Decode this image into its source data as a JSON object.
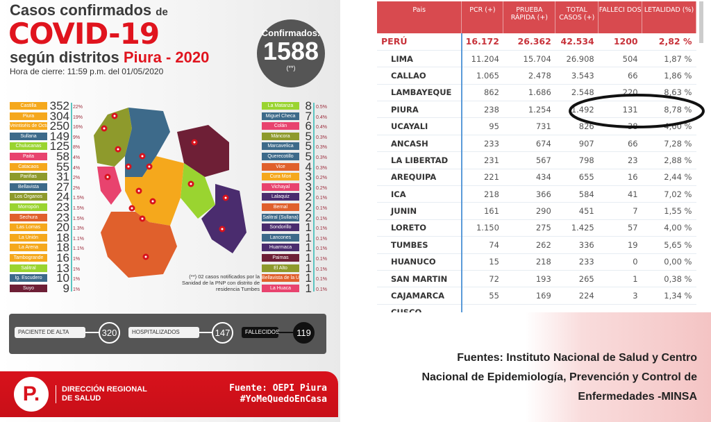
{
  "infographic": {
    "title_line1": "Casos confirmados",
    "title_de": "de",
    "title_main": "COVID-19",
    "title_line3a": "según distritos",
    "title_line3b": "Piura - 2020",
    "closing_time": "Hora de cierre: 11:59 p.m. del 01/05/2020",
    "confirmed_label": "Confirmados:",
    "confirmed_value": "1588",
    "confirmed_note": "(**)",
    "left_districts": [
      {
        "name": "Castilla",
        "cases": "352",
        "pct": "22%",
        "color": "#f5a81c"
      },
      {
        "name": "Piura",
        "cases": "304",
        "pct": "19%",
        "color": "#f5a81c"
      },
      {
        "name": "Veintiséis de Octubre",
        "cases": "250",
        "pct": "16%",
        "color": "#f5a81c"
      },
      {
        "name": "Sullana",
        "cases": "149",
        "pct": "9%",
        "color": "#3d6a8a"
      },
      {
        "name": "Chulucanas",
        "cases": "125",
        "pct": "8%",
        "color": "#9ad430"
      },
      {
        "name": "Paita",
        "cases": "58",
        "pct": "4%",
        "color": "#e8436e"
      },
      {
        "name": "Catacaos",
        "cases": "55",
        "pct": "4%",
        "color": "#f5a81c"
      },
      {
        "name": "Pariñas",
        "cases": "31",
        "pct": "2%",
        "color": "#8e9a2c"
      },
      {
        "name": "Bellavista",
        "cases": "27",
        "pct": "2%",
        "color": "#3d6a8a"
      },
      {
        "name": "Los Órganos",
        "cases": "24",
        "pct": "1.5%",
        "color": "#8e9a2c"
      },
      {
        "name": "Morropón",
        "cases": "23",
        "pct": "1.5%",
        "color": "#9ad430"
      },
      {
        "name": "Sechura",
        "cases": "23",
        "pct": "1.5%",
        "color": "#e0602c"
      },
      {
        "name": "Las Lomas",
        "cases": "20",
        "pct": "1.3%",
        "color": "#f5a81c"
      },
      {
        "name": "La Unión",
        "cases": "18",
        "pct": "1.1%",
        "color": "#f5a81c"
      },
      {
        "name": "La Arena",
        "cases": "18",
        "pct": "1.1%",
        "color": "#f5a81c"
      },
      {
        "name": "Tambogrande",
        "cases": "16",
        "pct": "1%",
        "color": "#f5a81c"
      },
      {
        "name": "Salitral",
        "cases": "13",
        "pct": "1%",
        "color": "#9ad430"
      },
      {
        "name": "Ig. Escudero",
        "cases": "10",
        "pct": "1%",
        "color": "#3d6a8a"
      },
      {
        "name": "Suyo",
        "cases": "9",
        "pct": "1%",
        "color": "#6e1f36"
      }
    ],
    "right_districts": [
      {
        "name": "La Matanza",
        "cases": "8",
        "pct": "0.5%",
        "color": "#9ad430"
      },
      {
        "name": "Miguel Checa",
        "cases": "7",
        "pct": "0.4%",
        "color": "#3d6a8a"
      },
      {
        "name": "Colán",
        "cases": "6",
        "pct": "0.4%",
        "color": "#e8436e"
      },
      {
        "name": "Máncora",
        "cases": "5",
        "pct": "0.3%",
        "color": "#8e9a2c"
      },
      {
        "name": "Marcavelica",
        "cases": "5",
        "pct": "0.3%",
        "color": "#3d6a8a"
      },
      {
        "name": "Querecotillo",
        "cases": "5",
        "pct": "0.3%",
        "color": "#3d6a8a"
      },
      {
        "name": "Vice",
        "cases": "4",
        "pct": "0.3%",
        "color": "#e0602c"
      },
      {
        "name": "Cura Mori",
        "cases": "3",
        "pct": "0.2%",
        "color": "#f5a81c"
      },
      {
        "name": "Vichayal",
        "cases": "3",
        "pct": "0.2%",
        "color": "#e8436e"
      },
      {
        "name": "Lalaquiz",
        "cases": "2",
        "pct": "0.1%",
        "color": "#4a2c6e"
      },
      {
        "name": "Bernal",
        "cases": "2",
        "pct": "0.1%",
        "color": "#e0602c"
      },
      {
        "name": "Salitral (Sullana)",
        "cases": "2",
        "pct": "0.1%",
        "color": "#3d6a8a"
      },
      {
        "name": "Sondorillo",
        "cases": "1",
        "pct": "0.1%",
        "color": "#4a2c6e"
      },
      {
        "name": "Lancones",
        "cases": "1",
        "pct": "0.1%",
        "color": "#3d6a8a"
      },
      {
        "name": "Huarmaca",
        "cases": "1",
        "pct": "0.1%",
        "color": "#4a2c6e"
      },
      {
        "name": "Paimas",
        "cases": "1",
        "pct": "0.1%",
        "color": "#6e1f36"
      },
      {
        "name": "El Alto",
        "cases": "1",
        "pct": "0.1%",
        "color": "#8e9a2c"
      },
      {
        "name": "Bellavista de la Unión",
        "cases": "1",
        "pct": "0.1%",
        "color": "#e0602c"
      },
      {
        "name": "La Huaca",
        "cases": "1",
        "pct": "0.1%",
        "color": "#e8436e"
      }
    ],
    "note": "(**) 02 casos notificados por la Sanidad de la PNP con distrito de residencia Tumbes",
    "stats": {
      "discharged_label": "PACIENTE DE ALTA",
      "discharged": "320",
      "hospitalized_label": "HOSPITALIZADOS",
      "hospitalized": "147",
      "deceased_label": "FALLECIDOS",
      "deceased": "119"
    },
    "footer": {
      "logo": "P.",
      "org": "DIRECCIÓN REGIONAL DE SALUD",
      "source": "Fuente: OEPI Piura",
      "hashtag": "#YoMeQuedoEnCasa"
    }
  },
  "table": {
    "headers": [
      "Pais",
      "PCR (+)",
      "PRUEBA RÁPIDA (+)",
      "TOTAL CASOS (+)",
      "FALLECI DOS",
      "LETALIDAD (%)"
    ],
    "total": [
      "PERÚ",
      "16.172",
      "26.362",
      "42.534",
      "1200",
      "2,82 %"
    ],
    "rows": [
      [
        "LIMA",
        "11.204",
        "15.704",
        "26.908",
        "504",
        "1,87 %"
      ],
      [
        "CALLAO",
        "1.065",
        "2.478",
        "3.543",
        "66",
        "1,86 %"
      ],
      [
        "LAMBAYEQUE",
        "862",
        "1.686",
        "2.548",
        "220",
        "8,63 %"
      ],
      [
        "PIURA",
        "238",
        "1.254",
        "1.492",
        "131",
        "8,78 %"
      ],
      [
        "UCAYALI",
        "95",
        "731",
        "826",
        "38",
        "4,60 %"
      ],
      [
        "ANCASH",
        "233",
        "674",
        "907",
        "66",
        "7,28 %"
      ],
      [
        "LA LIBERTAD",
        "231",
        "567",
        "798",
        "23",
        "2,88 %"
      ],
      [
        "AREQUIPA",
        "221",
        "434",
        "655",
        "16",
        "2,44 %"
      ],
      [
        "ICA",
        "218",
        "366",
        "584",
        "41",
        "7,02 %"
      ],
      [
        "JUNIN",
        "161",
        "290",
        "451",
        "7",
        "1,55 %"
      ],
      [
        "LORETO",
        "1.150",
        "275",
        "1.425",
        "57",
        "4,00 %"
      ],
      [
        "TUMBES",
        "74",
        "262",
        "336",
        "19",
        "5,65 %"
      ],
      [
        "HUANUCO",
        "15",
        "218",
        "233",
        "0",
        "0,00 %"
      ],
      [
        "SAN MARTIN",
        "72",
        "193",
        "265",
        "1",
        "0,38 %"
      ],
      [
        "CAJAMARCA",
        "55",
        "169",
        "224",
        "3",
        "1,34 %"
      ],
      [
        "CUSCO",
        "",
        "",
        "",
        "",
        ""
      ]
    ]
  },
  "sources": [
    "Fuentes: Instituto Nacional de Salud y Centro",
    "Nacional de Epidemiología, Prevención y Control de",
    "Enfermedades -MINSA"
  ]
}
